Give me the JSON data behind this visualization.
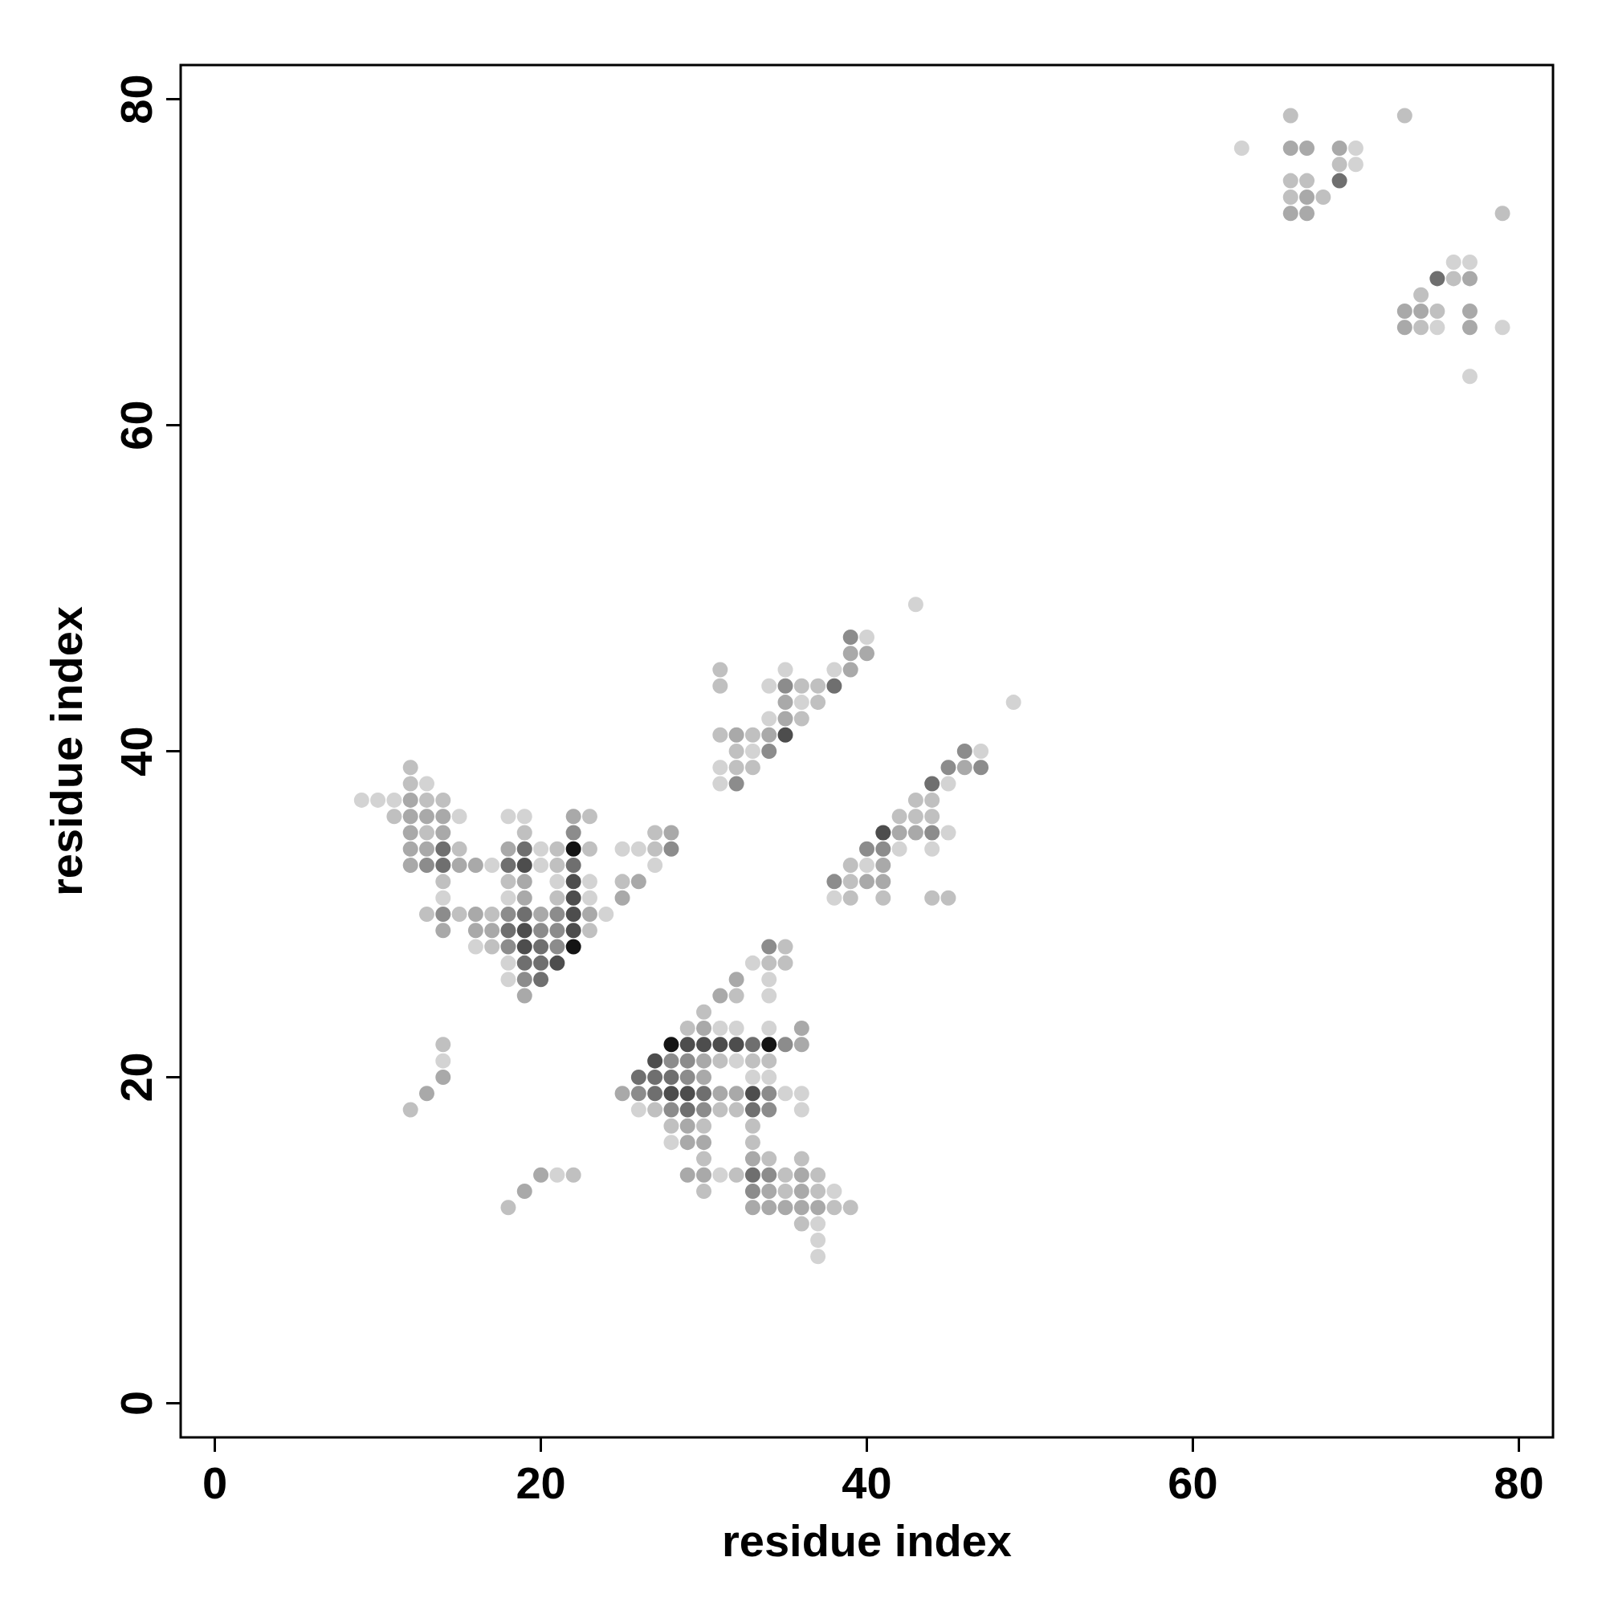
{
  "chart_data": {
    "type": "scatter",
    "xlabel": "residue index",
    "ylabel": "residue index",
    "xlim": [
      -2.1,
      82.1
    ],
    "ylim": [
      -2.1,
      82.1
    ],
    "xticks": [
      0,
      20,
      40,
      60,
      80
    ],
    "yticks": [
      0,
      20,
      40,
      60,
      80
    ],
    "grid": false,
    "marker": "circle",
    "series": [
      {
        "color": "#d3d3d3",
        "x": [
          13,
          9,
          10,
          11,
          15,
          18,
          19,
          20,
          25,
          26,
          17,
          20,
          27,
          21,
          23,
          14,
          18,
          23,
          24,
          16,
          18,
          18,
          40,
          35,
          38,
          34,
          36,
          49,
          34,
          33,
          47,
          31,
          31,
          45,
          45,
          42,
          44,
          40,
          38,
          33,
          34,
          34,
          31,
          32,
          34,
          32,
          33,
          34,
          35,
          36,
          26,
          36,
          28,
          31,
          38,
          37,
          37,
          37,
          14,
          21,
          43,
          63,
          70,
          70,
          76,
          77,
          75,
          79,
          77
        ],
        "values": [
          38,
          37,
          37,
          37,
          36,
          36,
          36,
          34,
          34,
          34,
          33,
          33,
          33,
          32,
          32,
          31,
          31,
          31,
          30,
          28,
          27,
          26,
          47,
          45,
          45,
          44,
          43,
          43,
          42,
          40,
          40,
          39,
          38,
          38,
          35,
          34,
          34,
          33,
          31,
          27,
          26,
          25,
          23,
          23,
          23,
          21,
          20,
          20,
          19,
          19,
          18,
          18,
          16,
          14,
          13,
          11,
          10,
          9,
          21,
          14,
          49,
          77,
          77,
          76,
          70,
          70,
          66,
          66,
          63
        ]
      },
      {
        "color": "#c0c0c0",
        "x": [
          12,
          12,
          13,
          14,
          11,
          23,
          13,
          19,
          27,
          15,
          21,
          23,
          27,
          21,
          14,
          18,
          25,
          21,
          13,
          15,
          17,
          23,
          17,
          31,
          31,
          36,
          37,
          37,
          36,
          31,
          33,
          32,
          32,
          33,
          43,
          44,
          42,
          43,
          44,
          39,
          39,
          39,
          41,
          44,
          45,
          35,
          34,
          35,
          32,
          30,
          29,
          31,
          33,
          34,
          27,
          31,
          32,
          28,
          30,
          33,
          33,
          30,
          34,
          36,
          32,
          35,
          37,
          30,
          35,
          37,
          38,
          39,
          36,
          14,
          12,
          22,
          18,
          66,
          73,
          69,
          66,
          67,
          66,
          68,
          79,
          76,
          74,
          75,
          74
        ],
        "values": [
          39,
          38,
          37,
          37,
          36,
          36,
          35,
          35,
          35,
          34,
          34,
          34,
          34,
          33,
          32,
          32,
          32,
          31,
          30,
          30,
          30,
          29,
          28,
          45,
          44,
          44,
          44,
          43,
          42,
          41,
          41,
          40,
          39,
          39,
          37,
          37,
          36,
          36,
          36,
          33,
          32,
          31,
          31,
          31,
          31,
          28,
          27,
          27,
          25,
          24,
          23,
          21,
          21,
          21,
          18,
          18,
          18,
          17,
          17,
          17,
          16,
          15,
          15,
          15,
          14,
          14,
          14,
          13,
          13,
          13,
          12,
          12,
          11,
          22,
          18,
          14,
          12,
          79,
          79,
          76,
          75,
          75,
          74,
          74,
          73,
          69,
          68,
          67,
          66
        ]
      },
      {
        "color": "#a9a9a9",
        "x": [
          12,
          12,
          13,
          14,
          22,
          28,
          12,
          14,
          12,
          13,
          18,
          12,
          15,
          16,
          19,
          26,
          19,
          25,
          16,
          20,
          23,
          14,
          16,
          17,
          19,
          39,
          40,
          39,
          35,
          35,
          32,
          34,
          46,
          42,
          43,
          41,
          40,
          41,
          32,
          31,
          30,
          36,
          36,
          30,
          30,
          25,
          31,
          32,
          29,
          29,
          30,
          33,
          29,
          30,
          36,
          34,
          36,
          33,
          34,
          35,
          36,
          37,
          14,
          13,
          20,
          19,
          66,
          67,
          69,
          67,
          66,
          67,
          77,
          73,
          74,
          77,
          73,
          77
        ],
        "values": [
          37,
          36,
          36,
          36,
          36,
          35,
          35,
          35,
          34,
          34,
          34,
          33,
          33,
          33,
          32,
          32,
          31,
          31,
          30,
          30,
          30,
          29,
          29,
          29,
          25,
          46,
          46,
          45,
          43,
          42,
          41,
          41,
          39,
          35,
          35,
          33,
          32,
          32,
          26,
          25,
          23,
          23,
          22,
          21,
          20,
          19,
          19,
          19,
          17,
          16,
          16,
          15,
          14,
          14,
          14,
          13,
          13,
          12,
          12,
          12,
          12,
          12,
          20,
          19,
          14,
          13,
          77,
          77,
          77,
          74,
          73,
          73,
          69,
          67,
          67,
          67,
          66,
          66
        ]
      },
      {
        "color": "#8c8c8c",
        "x": [
          22,
          28,
          13,
          14,
          18,
          21,
          20,
          21,
          18,
          21,
          19,
          39,
          35,
          34,
          46,
          45,
          47,
          32,
          44,
          40,
          41,
          38,
          34,
          35,
          28,
          29,
          29,
          26,
          34,
          28,
          30,
          34,
          34,
          33
        ],
        "values": [
          35,
          34,
          33,
          30,
          30,
          30,
          29,
          29,
          28,
          28,
          26,
          47,
          44,
          40,
          40,
          39,
          39,
          38,
          35,
          34,
          34,
          32,
          28,
          22,
          21,
          21,
          20,
          19,
          19,
          18,
          18,
          18,
          14,
          13
        ]
      },
      {
        "color": "#6f6f6f",
        "x": [
          14,
          19,
          14,
          18,
          22,
          19,
          18,
          20,
          19,
          20,
          20,
          38,
          44,
          33,
          26,
          27,
          28,
          27,
          30,
          29,
          33,
          33,
          69,
          75
        ],
        "values": [
          34,
          34,
          33,
          33,
          33,
          30,
          29,
          28,
          27,
          27,
          26,
          44,
          38,
          22,
          20,
          20,
          20,
          19,
          19,
          18,
          18,
          14,
          75,
          69
        ]
      },
      {
        "color": "#4d4d4d",
        "x": [
          19,
          22,
          22,
          22,
          19,
          22,
          19,
          21,
          35,
          41,
          29,
          30,
          31,
          32,
          27,
          28,
          29,
          33
        ],
        "values": [
          33,
          32,
          31,
          30,
          29,
          29,
          28,
          27,
          41,
          35,
          22,
          22,
          22,
          22,
          21,
          19,
          19,
          19
        ]
      },
      {
        "color": "#141414",
        "x": [
          22,
          22,
          28,
          34
        ],
        "values": [
          34,
          28,
          22,
          22
        ]
      }
    ]
  }
}
